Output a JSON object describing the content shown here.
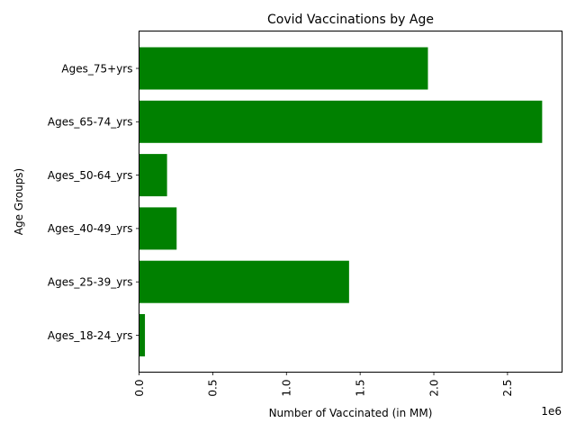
{
  "chart_data": {
    "type": "bar",
    "orientation": "horizontal",
    "title": "Covid Vaccinations by Age",
    "xlabel": "Number of Vaccinated (in MM)",
    "ylabel": "Age Groups)",
    "x_offset_label": "1e6",
    "categories": [
      "Ages_18-24_yrs",
      "Ages_25-39_yrs",
      "Ages_40-49_yrs",
      "Ages_50-64_yrs",
      "Ages_65-74_yrs",
      "Ages_75+yrs"
    ],
    "values": [
      40000,
      1425000,
      255000,
      190000,
      2735000,
      1960000
    ],
    "xlim": [
      0,
      2870000
    ],
    "xticks": [
      0,
      500000,
      1000000,
      1500000,
      2000000,
      2500000
    ],
    "xtick_labels": [
      "0.0",
      "0.5",
      "1.0",
      "1.5",
      "2.0",
      "2.5"
    ],
    "bar_color": "#008000",
    "grid": false
  }
}
